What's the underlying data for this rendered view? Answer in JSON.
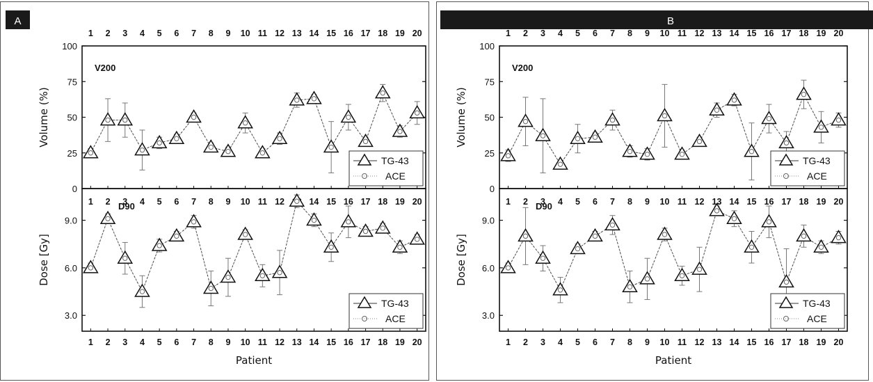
{
  "chart_data": [
    {
      "panel_label": "A",
      "xlabel": "Patient",
      "x": [
        1,
        2,
        3,
        4,
        5,
        6,
        7,
        8,
        9,
        10,
        11,
        12,
        13,
        14,
        15,
        16,
        17,
        18,
        19,
        20
      ],
      "subplots": [
        {
          "type": "line",
          "annotation": "V200",
          "ylabel": "Volume (%)",
          "ylim": [
            0,
            100
          ],
          "yticks": [
            "0",
            "25",
            "50",
            "75",
            "100"
          ],
          "legend_position": "bottom-right",
          "series": [
            {
              "name": "TG-43",
              "marker": "triangle",
              "line": "solid",
              "values": [
                25,
                48,
                48,
                27,
                32,
                35,
                50,
                29,
                26,
                46,
                25,
                35,
                62,
                63,
                29,
                50,
                33,
                67,
                40,
                53
              ],
              "err": [
                3,
                15,
                12,
                14,
                4,
                3,
                3,
                3,
                3,
                7,
                3,
                4,
                5,
                3,
                18,
                9,
                3,
                6,
                4,
                8
              ]
            },
            {
              "name": "ACE",
              "marker": "circle",
              "line": "dotted",
              "values": [
                25,
                48,
                48,
                27,
                32,
                35,
                50,
                29,
                26,
                46,
                25,
                35,
                62,
                63,
                29,
                50,
                33,
                67,
                40,
                53
              ]
            }
          ]
        },
        {
          "type": "line",
          "annotation": "D90",
          "ylabel": "Dose [Gy]",
          "ylim": [
            2.0,
            11.0
          ],
          "yticks": [
            "3.0",
            "6.0",
            "9.0"
          ],
          "legend_position": "bottom-right",
          "series": [
            {
              "name": "TG-43",
              "marker": "triangle",
              "line": "solid",
              "values": [
                6.0,
                9.1,
                6.6,
                4.5,
                7.4,
                8.0,
                8.9,
                4.7,
                5.4,
                8.1,
                5.5,
                5.7,
                10.2,
                9.0,
                7.3,
                8.9,
                8.3,
                8.5,
                7.3,
                7.8
              ],
              "err": [
                0.3,
                0.3,
                1.0,
                1.0,
                0.4,
                0.3,
                0.4,
                1.1,
                1.2,
                0.3,
                0.7,
                1.4,
                0.4,
                0.4,
                0.9,
                1.0,
                0.3,
                0.3,
                0.4,
                0.3
              ]
            },
            {
              "name": "ACE",
              "marker": "circle",
              "line": "dotted",
              "values": [
                6.0,
                9.1,
                6.6,
                4.5,
                7.4,
                8.0,
                8.9,
                4.7,
                5.4,
                8.1,
                5.5,
                5.7,
                10.2,
                9.0,
                7.3,
                8.9,
                8.3,
                8.5,
                7.3,
                7.8
              ]
            }
          ]
        }
      ]
    },
    {
      "panel_label": "B",
      "xlabel": "Patient",
      "x": [
        1,
        2,
        3,
        4,
        5,
        6,
        7,
        8,
        9,
        10,
        11,
        12,
        13,
        14,
        15,
        16,
        17,
        18,
        19,
        20
      ],
      "subplots": [
        {
          "type": "line",
          "annotation": "V200",
          "ylabel": "Volume (%)",
          "ylim": [
            0,
            100
          ],
          "yticks": [
            "0",
            "25",
            "50",
            "75",
            "100"
          ],
          "legend_position": "bottom-right",
          "series": [
            {
              "name": "TG-43",
              "marker": "triangle",
              "line": "solid",
              "values": [
                23,
                47,
                37,
                17,
                35,
                36,
                48,
                26,
                24,
                51,
                24,
                33,
                55,
                62,
                26,
                49,
                32,
                66,
                43,
                48
              ],
              "err": [
                4,
                17,
                26,
                3,
                10,
                3,
                7,
                4,
                4,
                22,
                3,
                3,
                5,
                4,
                20,
                10,
                8,
                10,
                11,
                5
              ]
            },
            {
              "name": "ACE",
              "marker": "circle",
              "line": "dotted",
              "values": [
                23,
                47,
                37,
                17,
                35,
                36,
                48,
                26,
                24,
                51,
                24,
                33,
                55,
                62,
                26,
                49,
                32,
                66,
                43,
                48
              ]
            }
          ]
        },
        {
          "type": "line",
          "annotation": "D90",
          "ylabel": "Dose [Gy]",
          "ylim": [
            2.0,
            11.0
          ],
          "yticks": [
            "3.0",
            "6.0",
            "9.0"
          ],
          "legend_position": "bottom-right",
          "series": [
            {
              "name": "TG-43",
              "marker": "triangle",
              "line": "solid",
              "values": [
                6.0,
                8.0,
                6.6,
                4.6,
                7.2,
                8.0,
                8.7,
                4.8,
                5.3,
                8.1,
                5.5,
                5.9,
                9.6,
                9.1,
                7.3,
                8.9,
                5.1,
                8.0,
                7.3,
                7.9
              ],
              "err": [
                0.3,
                1.8,
                0.8,
                0.8,
                0.3,
                0.3,
                0.6,
                1.0,
                1.3,
                0.4,
                0.6,
                1.4,
                0.3,
                0.5,
                1.0,
                1.0,
                2.1,
                0.7,
                0.4,
                0.4
              ]
            },
            {
              "name": "ACE",
              "marker": "circle",
              "line": "dotted",
              "values": [
                6.0,
                8.0,
                6.6,
                4.6,
                7.2,
                8.0,
                8.7,
                4.8,
                5.3,
                8.1,
                5.5,
                5.9,
                9.6,
                9.1,
                7.3,
                8.9,
                5.1,
                8.0,
                7.3,
                7.9
              ]
            }
          ]
        }
      ]
    }
  ]
}
